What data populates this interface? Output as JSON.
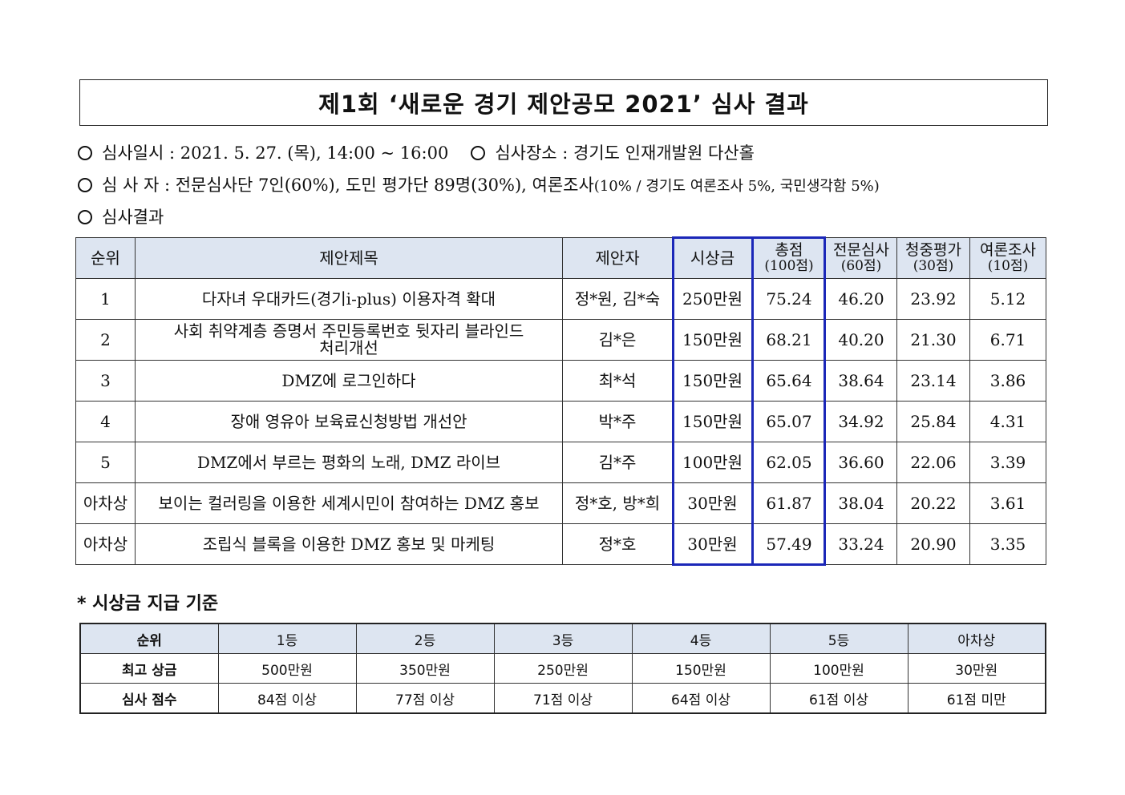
{
  "title": "제1회 ‘새로운 경기 제안공모 2021’ 심사 결과",
  "info": {
    "line1_a": "심사일시 : 2021. 5. 27. (목), 14:00 ~ 16:00",
    "line1_b": "심사장소 : 경기도 인재개발원 다산홀",
    "line2_a": "심 사 자 : 전문심사단 7인(60%), 도민 평가단 89명(30%), 여론조사",
    "line2_b": "(10% / 경기도 여론조사 5%, 국민생각함 5%)",
    "line3": "심사결과"
  },
  "results": {
    "headers": {
      "rank": "순위",
      "title": "제안제목",
      "proposer": "제안자",
      "prize": "시상금",
      "total": "총점",
      "total_sub": "(100점)",
      "expert": "전문심사",
      "expert_sub": "(60점)",
      "audience": "청중평가",
      "audience_sub": "(30점)",
      "poll": "여론조사",
      "poll_sub": "(10점)"
    },
    "rows": [
      {
        "rank": "1",
        "title": "다자녀 우대카드(경기i-plus) 이용자격 확대",
        "proposer": "정*원, 김*숙",
        "prize": "250만원",
        "total": "75.24",
        "expert": "46.20",
        "audience": "23.92",
        "poll": "5.12"
      },
      {
        "rank": "2",
        "title": "사회 취약계층 증명서 주민등록번호 뒷자리 블라인드 처리개선",
        "proposer": "김*은",
        "prize": "150만원",
        "total": "68.21",
        "expert": "40.20",
        "audience": "21.30",
        "poll": "6.71"
      },
      {
        "rank": "3",
        "title": "DMZ에 로그인하다",
        "proposer": "최*석",
        "prize": "150만원",
        "total": "65.64",
        "expert": "38.64",
        "audience": "23.14",
        "poll": "3.86"
      },
      {
        "rank": "4",
        "title": "장애 영유아 보육료신청방법 개선안",
        "proposer": "박*주",
        "prize": "150만원",
        "total": "65.07",
        "expert": "34.92",
        "audience": "25.84",
        "poll": "4.31"
      },
      {
        "rank": "5",
        "title": "DMZ에서 부르는 평화의 노래, DMZ 라이브",
        "proposer": "김*주",
        "prize": "100만원",
        "total": "62.05",
        "expert": "36.60",
        "audience": "22.06",
        "poll": "3.39"
      },
      {
        "rank": "아차상",
        "title": "보이는 컬러링을 이용한 세계시민이 참여하는 DMZ 홍보",
        "proposer": "정*호, 방*희",
        "prize": "30만원",
        "total": "61.87",
        "expert": "38.04",
        "audience": "20.22",
        "poll": "3.61"
      },
      {
        "rank": "아차상",
        "title": "조립식 블록을 이용한 DMZ 홍보 및 마케팅",
        "proposer": "정*호",
        "prize": "30만원",
        "total": "57.49",
        "expert": "33.24",
        "audience": "20.90",
        "poll": "3.35"
      }
    ]
  },
  "criteria": {
    "heading": "* 시상금 지급 기준",
    "rank_label": "순위",
    "ranks": [
      "1등",
      "2등",
      "3등",
      "4등",
      "5등",
      "아차상"
    ],
    "prize_label": "최고 상금",
    "prizes": [
      "500만원",
      "350만원",
      "250만원",
      "150만원",
      "100만원",
      "30만원"
    ],
    "score_label": "심사 점수",
    "scores": [
      "84점 이상",
      "77점 이상",
      "71점 이상",
      "64점 이상",
      "61점 이상",
      "61점 미만"
    ]
  },
  "colors": {
    "highlight_border": "#1b27b8",
    "header_bg": "#dde5f1"
  }
}
